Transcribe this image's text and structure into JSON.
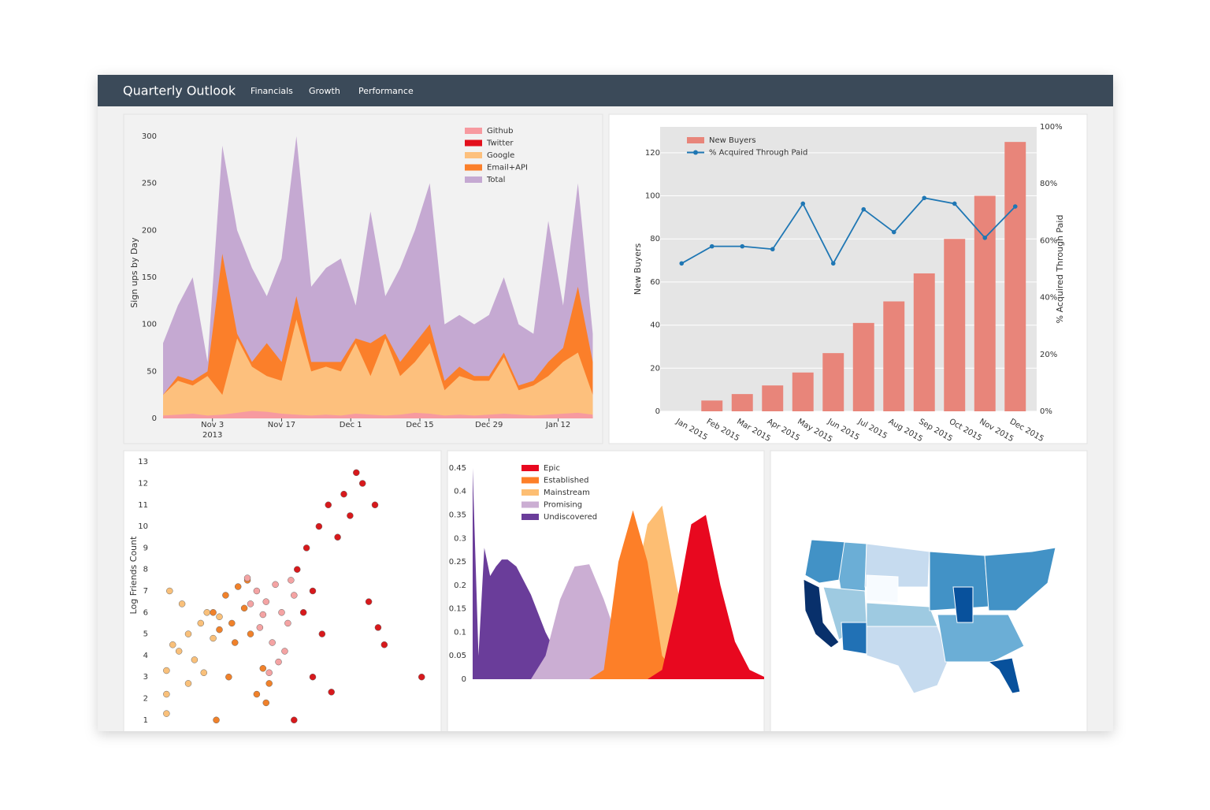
{
  "header": {
    "title": "Quarterly Outlook",
    "nav": [
      "Financials",
      "Growth",
      "Performance"
    ]
  },
  "chart_data": [
    {
      "type": "area",
      "y_label": "Sign ups by Day",
      "x": [
        "2013-10-24",
        "2013-10-27",
        "2013-10-30",
        "2013-11-02",
        "2013-11-05",
        "2013-11-08",
        "2013-11-11",
        "2013-11-14",
        "2013-11-17",
        "2013-11-20",
        "2013-11-23",
        "2013-11-26",
        "2013-11-29",
        "2013-12-02",
        "2013-12-05",
        "2013-12-08",
        "2013-12-11",
        "2013-12-14",
        "2013-12-17",
        "2013-12-20",
        "2013-12-23",
        "2013-12-26",
        "2013-12-29",
        "2014-01-01",
        "2014-01-04",
        "2014-01-07",
        "2014-01-10",
        "2014-01-13",
        "2014-01-16",
        "2014-01-19"
      ],
      "xlim": [
        "2013-10-24",
        "2014-01-21"
      ],
      "xticks": [
        {
          "value": "2013-11-03",
          "label": "Nov 3\n2013"
        },
        {
          "value": "2013-11-17",
          "label": "Nov 17"
        },
        {
          "value": "2013-12-01",
          "label": "Dec 1"
        },
        {
          "value": "2013-12-15",
          "label": "Dec 15"
        },
        {
          "value": "2013-12-29",
          "label": "Dec 29"
        },
        {
          "value": "2014-01-12",
          "label": "Jan 12"
        }
      ],
      "ylim": [
        0,
        310
      ],
      "yticks": [
        0,
        50,
        100,
        150,
        200,
        250,
        300
      ],
      "series": [
        {
          "name": "Github",
          "color": "#f79aa0",
          "values": [
            3,
            4,
            5,
            3,
            4,
            6,
            8,
            7,
            5,
            4,
            3,
            4,
            3,
            5,
            4,
            3,
            4,
            6,
            5,
            3,
            4,
            3,
            4,
            5,
            4,
            3,
            4,
            5,
            6,
            4
          ]
        },
        {
          "name": "Twitter",
          "color": "#e3101c",
          "values": [
            1,
            2,
            2,
            1,
            2,
            3,
            4,
            3,
            2,
            2,
            1,
            2,
            1,
            2,
            2,
            1,
            2,
            3,
            2,
            1,
            2,
            1,
            2,
            2,
            2,
            1,
            2,
            2,
            3,
            2
          ]
        },
        {
          "name": "Google",
          "color": "#fdc07d",
          "values": [
            25,
            40,
            35,
            45,
            25,
            85,
            55,
            45,
            40,
            105,
            50,
            55,
            50,
            80,
            45,
            85,
            45,
            60,
            80,
            30,
            45,
            40,
            40,
            65,
            30,
            35,
            45,
            60,
            70,
            25
          ]
        },
        {
          "name": "Email+API",
          "color": "#fb7f2a",
          "values": [
            25,
            45,
            40,
            50,
            175,
            90,
            60,
            80,
            60,
            130,
            60,
            60,
            60,
            85,
            80,
            90,
            60,
            80,
            100,
            40,
            55,
            45,
            45,
            70,
            35,
            40,
            60,
            75,
            140,
            60
          ]
        },
        {
          "name": "Total",
          "color": "#c5a9d2",
          "values": [
            80,
            120,
            150,
            60,
            290,
            200,
            160,
            130,
            170,
            300,
            140,
            160,
            170,
            120,
            220,
            130,
            160,
            200,
            250,
            100,
            110,
            100,
            110,
            150,
            100,
            90,
            210,
            120,
            250,
            90
          ]
        }
      ]
    },
    {
      "type": "bar",
      "y_label": "New Buyers",
      "y2_label": "% Acquired Through Paid",
      "grid": true,
      "categories": [
        "Jan 2015",
        "Feb 2015",
        "Mar 2015",
        "Apr 2015",
        "May 2015",
        "Jun 2015",
        "Jul 2015",
        "Aug 2015",
        "Sep 2015",
        "Oct 2015",
        "Nov 2015",
        "Dec 2015"
      ],
      "ylim": [
        0,
        132
      ],
      "yticks": [
        0,
        20,
        40,
        60,
        80,
        100,
        120
      ],
      "y2lim": [
        0,
        100
      ],
      "y2ticks": [
        {
          "value": 0,
          "label": "0%"
        },
        {
          "value": 20,
          "label": "20%"
        },
        {
          "value": 40,
          "label": "40%"
        },
        {
          "value": 60,
          "label": "60%"
        },
        {
          "value": 80,
          "label": "80%"
        },
        {
          "value": 100,
          "label": "100%"
        }
      ],
      "series": [
        {
          "name": "New Buyers",
          "color": "#e8857a",
          "type": "bar",
          "values": [
            0,
            5,
            8,
            12,
            18,
            27,
            41,
            51,
            64,
            80,
            100,
            125
          ]
        },
        {
          "name": "% Acquired Through Paid",
          "color": "#1f77b4",
          "type": "line",
          "axis": "y2",
          "values": [
            52,
            58,
            58,
            57,
            73,
            52,
            71,
            63,
            75,
            73,
            61,
            72
          ]
        }
      ]
    },
    {
      "type": "scatter",
      "y_label": "Log Friends Count",
      "xlim": [
        0,
        10
      ],
      "ylim": [
        0.7,
        13.3
      ],
      "yticks": [
        1,
        2,
        3,
        4,
        5,
        6,
        7,
        8,
        9,
        10,
        11,
        12,
        13
      ],
      "series": [
        {
          "color": "#f9c07a",
          "x": [
            1.3,
            1.3,
            1.3,
            1.5,
            1.7,
            2.0,
            2.2,
            2.4,
            2.6,
            2.0,
            1.8,
            2.8,
            1.4,
            2.5,
            3.0
          ],
          "values": [
            1.3,
            2.2,
            3.3,
            4.5,
            4.2,
            5.0,
            3.8,
            5.5,
            6.0,
            2.7,
            6.4,
            4.8,
            7.0,
            3.2,
            5.8
          ]
        },
        {
          "color": "#f0812a",
          "x": [
            2.8,
            3.2,
            3.4,
            3.6,
            3.8,
            4.0,
            3.5,
            3.3,
            4.2,
            4.5,
            3.9,
            4.4,
            3.0,
            2.9,
            4.6
          ],
          "values": [
            6.0,
            6.8,
            5.5,
            7.2,
            6.2,
            5.0,
            4.6,
            3.0,
            2.2,
            1.8,
            7.5,
            3.4,
            5.2,
            1.0,
            2.7
          ]
        },
        {
          "color": "#f4a3a3",
          "x": [
            3.9,
            4.2,
            4.5,
            4.8,
            5.0,
            5.2,
            4.3,
            4.7,
            5.1,
            4.9,
            5.4,
            4.6,
            4.4,
            5.3,
            4.0
          ],
          "values": [
            7.6,
            7.0,
            6.5,
            7.3,
            6.0,
            5.5,
            5.3,
            4.6,
            4.2,
            3.7,
            6.8,
            3.2,
            5.9,
            7.5,
            6.4
          ]
        },
        {
          "color": "#d7191c",
          "x": [
            5.5,
            5.8,
            6.2,
            6.5,
            7.0,
            7.4,
            7.6,
            8.0,
            7.2,
            6.8,
            6.0,
            5.7,
            6.3,
            7.8,
            8.3,
            9.5,
            6.0,
            8.1,
            6.6,
            5.4
          ],
          "values": [
            8.0,
            9.0,
            10.0,
            11.0,
            11.5,
            12.5,
            12.0,
            11.0,
            10.5,
            9.5,
            7.0,
            6.0,
            5.0,
            6.5,
            4.5,
            3.0,
            3.0,
            5.3,
            2.3,
            1.0
          ]
        }
      ]
    },
    {
      "type": "area",
      "xlim": [
        0,
        100
      ],
      "ylim": [
        0,
        0.46
      ],
      "yticks": [
        0,
        0.05,
        0.1,
        0.15,
        0.2,
        0.25,
        0.3,
        0.35,
        0.4,
        0.45
      ],
      "x": [
        0,
        2,
        4,
        6,
        8,
        10,
        12,
        15,
        20,
        25,
        30,
        35,
        40,
        45,
        50,
        55,
        60,
        65,
        70,
        75,
        80,
        85,
        90,
        95,
        100
      ],
      "series": [
        {
          "name": "Epic",
          "color": "#e8081f",
          "values": [
            0,
            0,
            0,
            0,
            0,
            0,
            0,
            0,
            0,
            0,
            0,
            0,
            0,
            0,
            0,
            0,
            0,
            0.02,
            0.16,
            0.33,
            0.35,
            0.2,
            0.08,
            0.02,
            0.005
          ]
        },
        {
          "name": "Established",
          "color": "#fd7f28",
          "values": [
            0,
            0,
            0,
            0,
            0,
            0,
            0,
            0,
            0,
            0,
            0,
            0,
            0,
            0.02,
            0.25,
            0.36,
            0.25,
            0.05,
            0.01,
            0,
            0,
            0,
            0,
            0,
            0
          ]
        },
        {
          "name": "Mainstream",
          "color": "#fdbe73",
          "values": [
            0,
            0,
            0,
            0,
            0,
            0,
            0,
            0,
            0,
            0,
            0,
            0,
            0,
            0,
            0.02,
            0.18,
            0.33,
            0.37,
            0.2,
            0.05,
            0.01,
            0,
            0,
            0,
            0
          ]
        },
        {
          "name": "Promising",
          "color": "#cbaed3",
          "values": [
            0,
            0,
            0,
            0,
            0,
            0,
            0,
            0,
            0,
            0.05,
            0.17,
            0.24,
            0.245,
            0.17,
            0.08,
            0.03,
            0.01,
            0,
            0,
            0,
            0,
            0,
            0,
            0,
            0
          ]
        },
        {
          "name": "Undiscovered",
          "color": "#6a3d9a",
          "values": [
            0.45,
            0.05,
            0.28,
            0.22,
            0.24,
            0.255,
            0.255,
            0.24,
            0.18,
            0.1,
            0.04,
            0.01,
            0,
            0,
            0,
            0,
            0,
            0,
            0,
            0,
            0,
            0,
            0,
            0,
            0
          ]
        }
      ]
    }
  ]
}
